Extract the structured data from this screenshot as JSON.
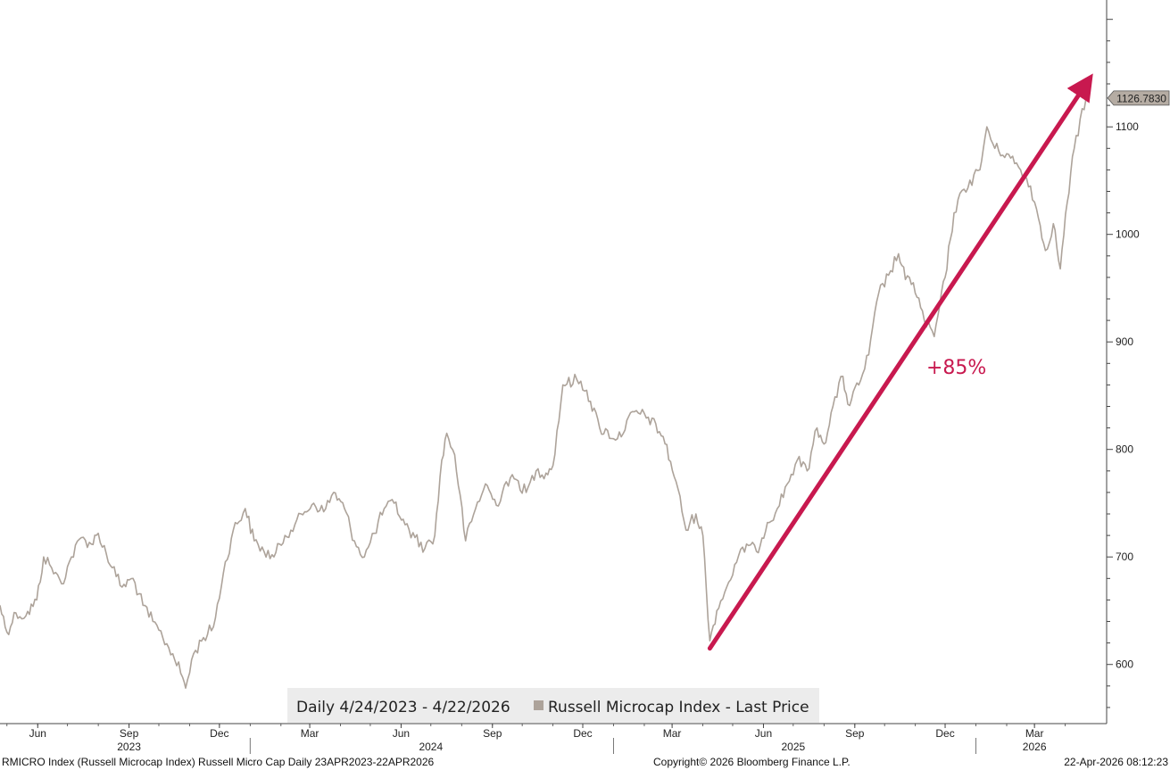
{
  "chart_data": {
    "type": "line",
    "legend": {
      "period": "Daily 4/24/2023 - 4/22/2026",
      "series_label": "Russell Microcap Index - Last Price",
      "placement": "bottom-center"
    },
    "x_range": [
      "2023-04-24",
      "2026-04-22"
    ],
    "y_axis": {
      "ticks": [
        600,
        700,
        800,
        900,
        1000,
        1100
      ],
      "side": "right",
      "ylim": [
        545,
        1218
      ]
    },
    "x_axis": {
      "month_ticks": [
        {
          "label": "Jun",
          "date": "2023-06-01"
        },
        {
          "label": "Sep",
          "date": "2023-09-01"
        },
        {
          "label": "Dec",
          "date": "2023-12-01"
        },
        {
          "label": "Mar",
          "date": "2024-03-01"
        },
        {
          "label": "Jun",
          "date": "2024-06-01"
        },
        {
          "label": "Sep",
          "date": "2024-09-01"
        },
        {
          "label": "Dec",
          "date": "2024-12-01"
        },
        {
          "label": "Mar",
          "date": "2025-03-01"
        },
        {
          "label": "Jun",
          "date": "2025-06-01"
        },
        {
          "label": "Sep",
          "date": "2025-09-01"
        },
        {
          "label": "Dec",
          "date": "2025-12-01"
        },
        {
          "label": "Mar",
          "date": "2026-03-01"
        }
      ],
      "year_labels": [
        {
          "label": "2023",
          "date": "2023-09-01"
        },
        {
          "label": "2024",
          "date": "2024-07-01"
        },
        {
          "label": "2025",
          "date": "2025-07-01"
        },
        {
          "label": "2026",
          "date": "2026-03-01"
        }
      ],
      "year_separators": [
        "2024-01-01",
        "2025-01-01",
        "2026-01-01"
      ]
    },
    "grid": false,
    "series": [
      {
        "color": "#ada39a",
        "last_value_label": "1126.7830",
        "points": [
          [
            "2023-04-24",
            655
          ],
          [
            "2023-05-01",
            630
          ],
          [
            "2023-05-10",
            648
          ],
          [
            "2023-05-20",
            645
          ],
          [
            "2023-05-31",
            660
          ],
          [
            "2023-06-07",
            700
          ],
          [
            "2023-06-15",
            690
          ],
          [
            "2023-06-25",
            675
          ],
          [
            "2023-07-05",
            700
          ],
          [
            "2023-07-15",
            718
          ],
          [
            "2023-07-25",
            712
          ],
          [
            "2023-08-01",
            722
          ],
          [
            "2023-08-15",
            690
          ],
          [
            "2023-08-25",
            672
          ],
          [
            "2023-09-05",
            680
          ],
          [
            "2023-09-15",
            655
          ],
          [
            "2023-09-25",
            640
          ],
          [
            "2023-10-05",
            625
          ],
          [
            "2023-10-15",
            610
          ],
          [
            "2023-10-25",
            588
          ],
          [
            "2023-10-28",
            578
          ],
          [
            "2023-11-05",
            610
          ],
          [
            "2023-11-15",
            625
          ],
          [
            "2023-11-25",
            635
          ],
          [
            "2023-12-05",
            685
          ],
          [
            "2023-12-15",
            725
          ],
          [
            "2023-12-27",
            745
          ],
          [
            "2024-01-05",
            715
          ],
          [
            "2024-01-15",
            705
          ],
          [
            "2024-01-25",
            700
          ],
          [
            "2024-02-05",
            720
          ],
          [
            "2024-02-15",
            730
          ],
          [
            "2024-02-25",
            742
          ],
          [
            "2024-03-05",
            750
          ],
          [
            "2024-03-15",
            742
          ],
          [
            "2024-03-25",
            760
          ],
          [
            "2024-04-05",
            745
          ],
          [
            "2024-04-15",
            715
          ],
          [
            "2024-04-25",
            700
          ],
          [
            "2024-05-05",
            722
          ],
          [
            "2024-05-15",
            745
          ],
          [
            "2024-05-25",
            750
          ],
          [
            "2024-06-05",
            730
          ],
          [
            "2024-06-15",
            718
          ],
          [
            "2024-06-25",
            708
          ],
          [
            "2024-07-05",
            720
          ],
          [
            "2024-07-12",
            790
          ],
          [
            "2024-07-17",
            815
          ],
          [
            "2024-07-25",
            795
          ],
          [
            "2024-08-05",
            715
          ],
          [
            "2024-08-15",
            745
          ],
          [
            "2024-08-25",
            768
          ],
          [
            "2024-09-05",
            748
          ],
          [
            "2024-09-15",
            770
          ],
          [
            "2024-09-25",
            772
          ],
          [
            "2024-10-05",
            760
          ],
          [
            "2024-10-15",
            780
          ],
          [
            "2024-10-25",
            778
          ],
          [
            "2024-11-01",
            785
          ],
          [
            "2024-11-11",
            860
          ],
          [
            "2024-11-25",
            865
          ],
          [
            "2024-12-05",
            855
          ],
          [
            "2024-12-18",
            820
          ],
          [
            "2025-01-05",
            810
          ],
          [
            "2025-01-22",
            835
          ],
          [
            "2025-02-05",
            830
          ],
          [
            "2025-02-20",
            812
          ],
          [
            "2025-03-05",
            770
          ],
          [
            "2025-03-15",
            725
          ],
          [
            "2025-03-25",
            740
          ],
          [
            "2025-04-01",
            720
          ],
          [
            "2025-04-08",
            622
          ],
          [
            "2025-04-15",
            650
          ],
          [
            "2025-04-25",
            672
          ],
          [
            "2025-05-05",
            695
          ],
          [
            "2025-05-15",
            712
          ],
          [
            "2025-05-25",
            705
          ],
          [
            "2025-06-05",
            732
          ],
          [
            "2025-06-15",
            745
          ],
          [
            "2025-06-25",
            768
          ],
          [
            "2025-07-05",
            790
          ],
          [
            "2025-07-15",
            780
          ],
          [
            "2025-07-25",
            820
          ],
          [
            "2025-08-01",
            805
          ],
          [
            "2025-08-10",
            840
          ],
          [
            "2025-08-20",
            868
          ],
          [
            "2025-08-25",
            842
          ],
          [
            "2025-09-05",
            860
          ],
          [
            "2025-09-15",
            888
          ],
          [
            "2025-09-25",
            945
          ],
          [
            "2025-10-05",
            962
          ],
          [
            "2025-10-15",
            982
          ],
          [
            "2025-10-22",
            958
          ],
          [
            "2025-10-30",
            955
          ],
          [
            "2025-11-10",
            920
          ],
          [
            "2025-11-20",
            905
          ],
          [
            "2025-12-01",
            960
          ],
          [
            "2025-12-10",
            1020
          ],
          [
            "2025-12-20",
            1042
          ],
          [
            "2026-01-05",
            1060
          ],
          [
            "2026-01-12",
            1100
          ],
          [
            "2026-01-20",
            1080
          ],
          [
            "2026-02-01",
            1075
          ],
          [
            "2026-02-15",
            1060
          ],
          [
            "2026-02-25",
            1045
          ],
          [
            "2026-03-05",
            1015
          ],
          [
            "2026-03-12",
            985
          ],
          [
            "2026-03-20",
            1010
          ],
          [
            "2026-03-27",
            968
          ],
          [
            "2026-04-03",
            1030
          ],
          [
            "2026-04-10",
            1080
          ],
          [
            "2026-04-22",
            1126.783
          ]
        ]
      }
    ],
    "trend_arrow": {
      "from": [
        "2025-04-08",
        615
      ],
      "to": [
        "2026-04-22",
        1140
      ],
      "color": "#c8194f",
      "label": "+85%"
    }
  },
  "footer": {
    "left": "RMICRO Index (Russell Microcap Index) Russell Micro Cap Daily 23APR2023-22APR2026",
    "center": "Copyright© 2026 Bloomberg Finance L.P.",
    "right": "22-Apr-2026 08:12:23"
  }
}
